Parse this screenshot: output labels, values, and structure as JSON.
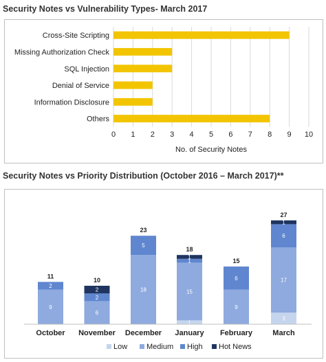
{
  "colors": {
    "bar": "#F2C500",
    "low": "#C5D5EE",
    "medium": "#8EAADF",
    "high": "#5F86CF",
    "hot_news": "#1F3560"
  },
  "chart_data": [
    {
      "type": "bar",
      "orientation": "horizontal",
      "title": "Security Notes vs Vulnerability Types- March 2017",
      "categories": [
        "Cross-Site Scripting",
        "Missing Authorization Check",
        "SQL Injection",
        "Denial of Service",
        "Information Disclosure",
        "Others"
      ],
      "values": [
        9,
        3,
        3,
        2,
        2,
        8
      ],
      "xlabel": "No. of Security Notes",
      "xlim": [
        0,
        10
      ],
      "xticks": [
        0,
        1,
        2,
        3,
        4,
        5,
        6,
        7,
        8,
        9,
        10
      ],
      "grid": true
    },
    {
      "type": "bar",
      "stacked": true,
      "title": "Security Notes vs Priority Distribution (October 2016 – March 2017)**",
      "categories": [
        "October",
        "November",
        "December",
        "January",
        "February",
        "March"
      ],
      "series": [
        {
          "name": "Low",
          "values": [
            0,
            0,
            0,
            1,
            0,
            3
          ]
        },
        {
          "name": "Medium",
          "values": [
            9,
            6,
            18,
            15,
            9,
            17
          ]
        },
        {
          "name": "High",
          "values": [
            2,
            2,
            5,
            1,
            6,
            6
          ]
        },
        {
          "name": "Hot News",
          "values": [
            0,
            2,
            0,
            1,
            0,
            1
          ]
        }
      ],
      "totals": [
        11,
        10,
        23,
        18,
        15,
        27
      ],
      "legend": "bottom",
      "grid": false
    }
  ]
}
